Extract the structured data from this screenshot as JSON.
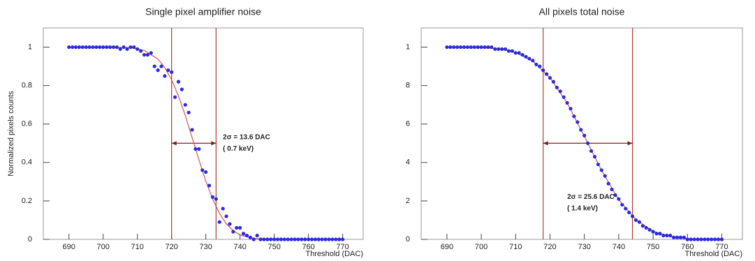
{
  "chart_data": [
    {
      "type": "scatter",
      "title": "Single pixel amplifier noise",
      "x_label": "Threshold (DAC)",
      "y_label": "Normalized pixels counts",
      "x": [
        690,
        691,
        692,
        693,
        694,
        695,
        696,
        697,
        698,
        699,
        700,
        701,
        702,
        703,
        704,
        705,
        706,
        707,
        708,
        709,
        710,
        711,
        712,
        713,
        714,
        715,
        716,
        717,
        718,
        719,
        720,
        721,
        722,
        723,
        724,
        725,
        726,
        727,
        728,
        729,
        730,
        731,
        732,
        733,
        734,
        735,
        736,
        737,
        738,
        739,
        740,
        741,
        742,
        743,
        744,
        745,
        746,
        747,
        748,
        749,
        750,
        751,
        752,
        753,
        754,
        755,
        756,
        757,
        758,
        759,
        760,
        761,
        762,
        763,
        764,
        765,
        766,
        767,
        768,
        769,
        770
      ],
      "values": [
        1,
        1,
        1,
        1,
        1,
        1,
        1,
        1,
        1,
        1,
        1,
        1,
        1,
        1,
        1,
        0.99,
        1,
        0.99,
        1,
        1,
        0.99,
        0.98,
        0.96,
        0.96,
        0.97,
        0.9,
        0.88,
        0.9,
        0.85,
        0.88,
        0.87,
        0.74,
        0.82,
        0.78,
        0.7,
        0.66,
        0.57,
        0.47,
        0.47,
        0.36,
        0.35,
        0.28,
        0.22,
        0.21,
        0.09,
        0.16,
        0.12,
        0.08,
        0.04,
        0.06,
        0.06,
        0.03,
        0.02,
        0.01,
        0,
        0.02,
        0,
        0,
        0,
        0,
        0,
        0,
        0,
        0,
        0,
        0,
        0,
        0,
        0,
        0,
        0,
        0,
        0,
        0,
        0,
        0,
        0,
        0,
        0,
        0,
        0
      ],
      "marker_color": "#2b2bd9",
      "fit_x": [
        700,
        704,
        708,
        712,
        716,
        718,
        720,
        722,
        724,
        726,
        728,
        730,
        732,
        734,
        736,
        738,
        740,
        744,
        748,
        752
      ],
      "fit_values": [
        1,
        0.9995,
        0.997,
        0.983,
        0.938,
        0.894,
        0.83,
        0.746,
        0.644,
        0.529,
        0.413,
        0.303,
        0.209,
        0.135,
        0.081,
        0.045,
        0.023,
        0.005,
        0.001,
        0
      ],
      "fit_color": "#d9534f",
      "vlines": [
        720,
        733
      ],
      "vline_color": "#b03a2e",
      "arrow_y": 0.5,
      "arrow_color": "#7a1f1f",
      "annotation": [
        "2σ = 13.6 DAC",
        "( 0.7 keV)"
      ],
      "xlim": [
        682.5,
        776
      ],
      "ylim": [
        0,
        1.1
      ],
      "xticks": [
        690,
        700,
        710,
        720,
        730,
        740,
        750,
        760,
        770
      ],
      "yticks": [
        0,
        0.2,
        0.4,
        0.6,
        0.8,
        1
      ]
    },
    {
      "type": "scatter",
      "title": "All pixels total noise",
      "x_label": "Threshold (DAC)",
      "x": [
        690,
        691,
        692,
        693,
        694,
        695,
        696,
        697,
        698,
        699,
        700,
        701,
        702,
        703,
        704,
        705,
        706,
        707,
        708,
        709,
        710,
        711,
        712,
        713,
        714,
        715,
        716,
        717,
        718,
        719,
        720,
        721,
        722,
        723,
        724,
        725,
        726,
        727,
        728,
        729,
        730,
        731,
        732,
        733,
        734,
        735,
        736,
        737,
        738,
        739,
        740,
        741,
        742,
        743,
        744,
        745,
        746,
        747,
        748,
        749,
        750,
        751,
        752,
        753,
        754,
        755,
        756,
        757,
        758,
        759,
        760,
        761,
        762,
        763,
        764,
        765,
        766,
        767,
        768,
        769,
        770
      ],
      "values": [
        1,
        1,
        1,
        1,
        1,
        1,
        1,
        1,
        1,
        1,
        1,
        1,
        1,
        1,
        0.99,
        0.99,
        0.99,
        0.99,
        0.98,
        0.98,
        0.97,
        0.97,
        0.96,
        0.95,
        0.94,
        0.93,
        0.91,
        0.9,
        0.88,
        0.86,
        0.84,
        0.82,
        0.79,
        0.77,
        0.74,
        0.71,
        0.68,
        0.64,
        0.61,
        0.57,
        0.54,
        0.5,
        0.46,
        0.43,
        0.39,
        0.36,
        0.33,
        0.29,
        0.26,
        0.23,
        0.21,
        0.18,
        0.16,
        0.14,
        0.12,
        0.1,
        0.09,
        0.07,
        0.06,
        0.05,
        0.04,
        0.03,
        0.03,
        0.02,
        0.02,
        0.02,
        0.01,
        0.01,
        0.01,
        0.01,
        0,
        0,
        0,
        0,
        0,
        0,
        0,
        0,
        0,
        0,
        0
      ],
      "marker_color": "#2b2bd9",
      "fit_x": [
        690,
        695,
        700,
        705,
        710,
        715,
        720,
        725,
        730,
        735,
        740,
        745,
        750,
        755,
        760,
        765,
        770
      ],
      "fit_values": [
        1,
        0.999,
        0.998,
        0.991,
        0.972,
        0.927,
        0.841,
        0.709,
        0.536,
        0.359,
        0.206,
        0.102,
        0.042,
        0.015,
        0.004,
        0.001,
        0
      ],
      "fit_color": "#d9534f",
      "vlines": [
        718,
        744
      ],
      "vline_color": "#b03a2e",
      "arrow_y": 0.5,
      "arrow_color": "#7a1f1f",
      "annotation": [
        "2σ = 25.6 DAC",
        "( 1.4 keV)"
      ],
      "xlim": [
        682.5,
        776
      ],
      "ylim": [
        0,
        1.1
      ],
      "xticks": [
        690,
        700,
        710,
        720,
        730,
        740,
        750,
        760,
        770
      ],
      "yticks": [
        0,
        {
          "value": 0.2,
          "label": "2"
        },
        {
          "value": 0.4,
          "label": "4"
        },
        {
          "value": 0.6,
          "label": "6"
        },
        {
          "value": 0.8,
          "label": "8"
        },
        1
      ]
    }
  ]
}
